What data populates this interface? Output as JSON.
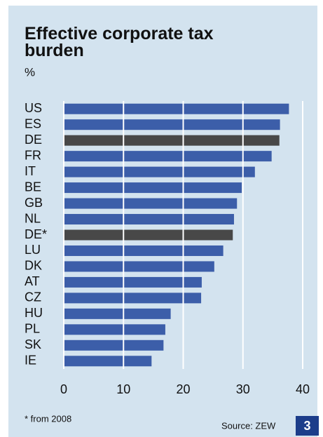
{
  "chart_data": {
    "type": "bar",
    "orientation": "horizontal",
    "title": "Effective corporate tax burden",
    "subtitle": "%",
    "categories": [
      "US",
      "ES",
      "DE",
      "FR",
      "IT",
      "BE",
      "GB",
      "NL",
      "DE*",
      "LU",
      "DK",
      "AT",
      "CZ",
      "HU",
      "PL",
      "SK",
      "IE"
    ],
    "values": [
      37.7,
      36.2,
      36.1,
      34.8,
      32.0,
      29.8,
      29.0,
      28.5,
      28.3,
      26.7,
      25.2,
      23.1,
      23.0,
      17.9,
      17.0,
      16.7,
      14.7
    ],
    "colors": [
      "#3c5ea9",
      "#3c5ea9",
      "#484848",
      "#3c5ea9",
      "#3c5ea9",
      "#3c5ea9",
      "#3c5ea9",
      "#3c5ea9",
      "#484848",
      "#3c5ea9",
      "#3c5ea9",
      "#3c5ea9",
      "#3c5ea9",
      "#3c5ea9",
      "#3c5ea9",
      "#3c5ea9",
      "#3c5ea9"
    ],
    "xlim": [
      0,
      40
    ],
    "xticks": [
      0,
      10,
      20,
      30,
      40
    ],
    "grid": true,
    "footnote": "* from 2008",
    "source": "Source: ZEW",
    "badge": "3"
  }
}
